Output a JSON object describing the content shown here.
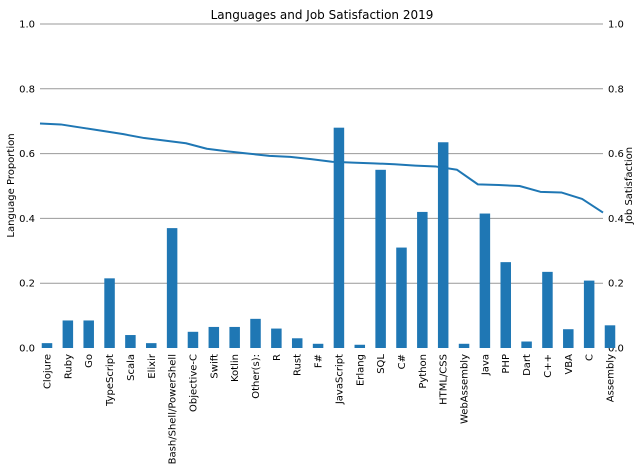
{
  "chart_data": {
    "type": "bar+line",
    "title": "Languages and Job Satisfaction 2019",
    "xlabel": "",
    "ylabel_left": "Language Proportion",
    "ylabel_right": "Job Satisfaction",
    "ylim_left": [
      0,
      1.0
    ],
    "ylim_right": [
      0,
      1.0
    ],
    "yticks_left": [
      "0.0",
      "0.2",
      "0.4",
      "0.6",
      "0.8",
      "1.0"
    ],
    "yticks_right": [
      "0.0",
      "0.2",
      "0.4",
      "0.6",
      "0.8",
      "1.0"
    ],
    "grid": "horizontal",
    "bar_color": "#1f77b4",
    "line_color": "#1f77b4",
    "grid_color": "#999999",
    "categories": [
      "Clojure",
      "Ruby",
      "Go",
      "TypeScript",
      "Scala",
      "Elixir",
      "Bash/Shell/PowerShell",
      "Objective-C",
      "Swift",
      "Kotlin",
      "Other(s):",
      "R",
      "Rust",
      "F#",
      "JavaScript",
      "Erlang",
      "SQL",
      "C#",
      "Python",
      "HTML/CSS",
      "WebAssembly",
      "Java",
      "PHP",
      "Dart",
      "C++",
      "VBA",
      "C",
      "Assembly"
    ],
    "bar_values": [
      0.015,
      0.085,
      0.085,
      0.215,
      0.04,
      0.015,
      0.37,
      0.05,
      0.065,
      0.065,
      0.09,
      0.06,
      0.03,
      0.013,
      0.68,
      0.01,
      0.55,
      0.31,
      0.42,
      0.635,
      0.013,
      0.415,
      0.265,
      0.02,
      0.235,
      0.058,
      0.208,
      0.07
    ],
    "line_values": [
      0.693,
      0.69,
      0.68,
      0.67,
      0.66,
      0.648,
      0.64,
      0.632,
      0.615,
      0.607,
      0.6,
      0.593,
      0.59,
      0.583,
      0.575,
      0.572,
      0.57,
      0.567,
      0.563,
      0.56,
      0.55,
      0.505,
      0.503,
      0.5,
      0.482,
      0.48,
      0.46,
      0.418
    ]
  }
}
